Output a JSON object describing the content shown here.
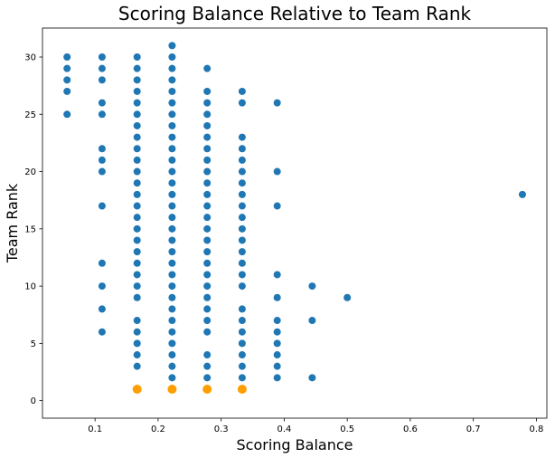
{
  "chart_data": {
    "type": "scatter",
    "title": "Scoring Balance Relative to Team Rank",
    "xlabel": "Scoring Balance",
    "ylabel": "Team Rank",
    "xlim": [
      0.0166,
      0.8166
    ],
    "ylim": [
      32.53,
      -1.53
    ],
    "y_inverted": true,
    "grid": false,
    "x_ticks": [
      0.1,
      0.2,
      0.3,
      0.4,
      0.5,
      0.6,
      0.7,
      0.8
    ],
    "x_tick_labels": [
      "0.1",
      "0.2",
      "0.3",
      "0.4",
      "0.5",
      "0.6",
      "0.7",
      "0.8"
    ],
    "y_ticks": [
      0,
      5,
      10,
      15,
      20,
      25,
      30
    ],
    "y_tick_labels": [
      "0",
      "5",
      "10",
      "15",
      "20",
      "25",
      "30"
    ],
    "colors": {
      "main": "#1f77b4",
      "highlight": "#ff9e00"
    },
    "series": [
      {
        "color": "#1f77b4",
        "points": [
          [
            0.0556,
            25
          ],
          [
            0.0556,
            27
          ],
          [
            0.0556,
            28
          ],
          [
            0.0556,
            29
          ],
          [
            0.0556,
            30
          ],
          [
            0.1111,
            6
          ],
          [
            0.1111,
            8
          ],
          [
            0.1111,
            10
          ],
          [
            0.1111,
            12
          ],
          [
            0.1111,
            17
          ],
          [
            0.1111,
            20
          ],
          [
            0.1111,
            21
          ],
          [
            0.1111,
            22
          ],
          [
            0.1111,
            25
          ],
          [
            0.1111,
            26
          ],
          [
            0.1111,
            28
          ],
          [
            0.1111,
            29
          ],
          [
            0.1111,
            30
          ],
          [
            0.1667,
            3
          ],
          [
            0.1667,
            4
          ],
          [
            0.1667,
            5
          ],
          [
            0.1667,
            6
          ],
          [
            0.1667,
            7
          ],
          [
            0.1667,
            9
          ],
          [
            0.1667,
            10
          ],
          [
            0.1667,
            11
          ],
          [
            0.1667,
            12
          ],
          [
            0.1667,
            13
          ],
          [
            0.1667,
            14
          ],
          [
            0.1667,
            15
          ],
          [
            0.1667,
            16
          ],
          [
            0.1667,
            17
          ],
          [
            0.1667,
            18
          ],
          [
            0.1667,
            19
          ],
          [
            0.1667,
            20
          ],
          [
            0.1667,
            21
          ],
          [
            0.1667,
            22
          ],
          [
            0.1667,
            23
          ],
          [
            0.1667,
            24
          ],
          [
            0.1667,
            25
          ],
          [
            0.1667,
            26
          ],
          [
            0.1667,
            27
          ],
          [
            0.1667,
            28
          ],
          [
            0.1667,
            29
          ],
          [
            0.1667,
            30
          ],
          [
            0.2222,
            2
          ],
          [
            0.2222,
            3
          ],
          [
            0.2222,
            4
          ],
          [
            0.2222,
            5
          ],
          [
            0.2222,
            6
          ],
          [
            0.2222,
            7
          ],
          [
            0.2222,
            8
          ],
          [
            0.2222,
            9
          ],
          [
            0.2222,
            10
          ],
          [
            0.2222,
            11
          ],
          [
            0.2222,
            12
          ],
          [
            0.2222,
            13
          ],
          [
            0.2222,
            14
          ],
          [
            0.2222,
            15
          ],
          [
            0.2222,
            16
          ],
          [
            0.2222,
            17
          ],
          [
            0.2222,
            18
          ],
          [
            0.2222,
            19
          ],
          [
            0.2222,
            20
          ],
          [
            0.2222,
            21
          ],
          [
            0.2222,
            22
          ],
          [
            0.2222,
            23
          ],
          [
            0.2222,
            24
          ],
          [
            0.2222,
            25
          ],
          [
            0.2222,
            26
          ],
          [
            0.2222,
            27
          ],
          [
            0.2222,
            28
          ],
          [
            0.2222,
            29
          ],
          [
            0.2222,
            30
          ],
          [
            0.2222,
            31
          ],
          [
            0.2778,
            2
          ],
          [
            0.2778,
            3
          ],
          [
            0.2778,
            4
          ],
          [
            0.2778,
            6
          ],
          [
            0.2778,
            7
          ],
          [
            0.2778,
            8
          ],
          [
            0.2778,
            9
          ],
          [
            0.2778,
            10
          ],
          [
            0.2778,
            11
          ],
          [
            0.2778,
            12
          ],
          [
            0.2778,
            13
          ],
          [
            0.2778,
            14
          ],
          [
            0.2778,
            15
          ],
          [
            0.2778,
            16
          ],
          [
            0.2778,
            17
          ],
          [
            0.2778,
            18
          ],
          [
            0.2778,
            19
          ],
          [
            0.2778,
            20
          ],
          [
            0.2778,
            21
          ],
          [
            0.2778,
            22
          ],
          [
            0.2778,
            23
          ],
          [
            0.2778,
            24
          ],
          [
            0.2778,
            25
          ],
          [
            0.2778,
            26
          ],
          [
            0.2778,
            27
          ],
          [
            0.2778,
            29
          ],
          [
            0.3333,
            2
          ],
          [
            0.3333,
            3
          ],
          [
            0.3333,
            4
          ],
          [
            0.3333,
            5
          ],
          [
            0.3333,
            6
          ],
          [
            0.3333,
            7
          ],
          [
            0.3333,
            8
          ],
          [
            0.3333,
            10
          ],
          [
            0.3333,
            11
          ],
          [
            0.3333,
            12
          ],
          [
            0.3333,
            13
          ],
          [
            0.3333,
            14
          ],
          [
            0.3333,
            15
          ],
          [
            0.3333,
            16
          ],
          [
            0.3333,
            17
          ],
          [
            0.3333,
            18
          ],
          [
            0.3333,
            19
          ],
          [
            0.3333,
            20
          ],
          [
            0.3333,
            21
          ],
          [
            0.3333,
            22
          ],
          [
            0.3333,
            23
          ],
          [
            0.3333,
            26
          ],
          [
            0.3333,
            27
          ],
          [
            0.3889,
            2
          ],
          [
            0.3889,
            3
          ],
          [
            0.3889,
            4
          ],
          [
            0.3889,
            5
          ],
          [
            0.3889,
            6
          ],
          [
            0.3889,
            7
          ],
          [
            0.3889,
            9
          ],
          [
            0.3889,
            11
          ],
          [
            0.3889,
            17
          ],
          [
            0.3889,
            20
          ],
          [
            0.3889,
            26
          ],
          [
            0.4444,
            2
          ],
          [
            0.4444,
            7
          ],
          [
            0.4444,
            10
          ],
          [
            0.5,
            9
          ],
          [
            0.7778,
            18
          ]
        ]
      },
      {
        "color": "#ff9e00",
        "points": [
          [
            0.1667,
            1
          ],
          [
            0.2222,
            1
          ],
          [
            0.2778,
            1
          ],
          [
            0.3333,
            1
          ]
        ]
      }
    ]
  }
}
